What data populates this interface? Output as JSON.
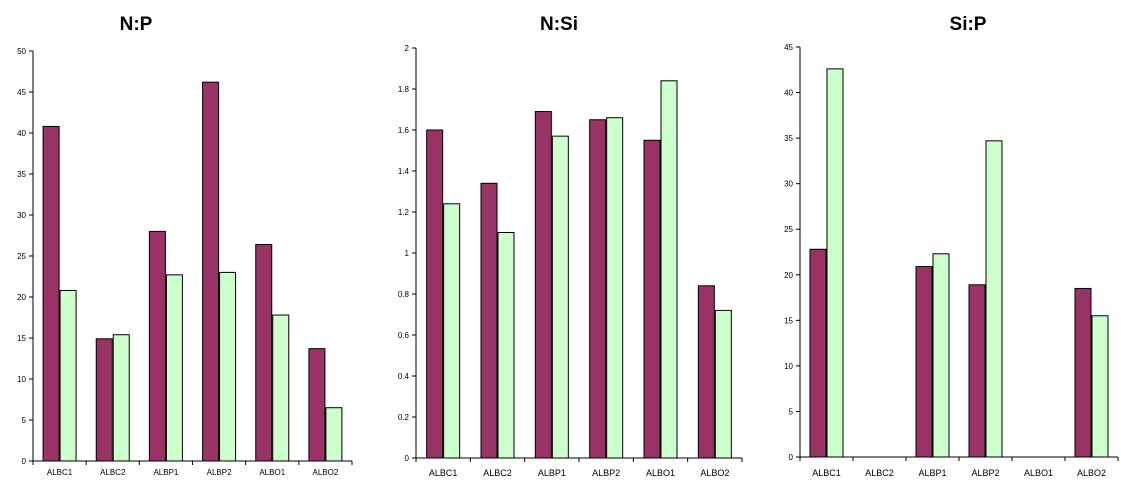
{
  "colors": {
    "series_a": "#993366",
    "series_b": "#CCFFCC",
    "axis": "#000000"
  },
  "chart_data": [
    {
      "type": "bar",
      "title": "N:P",
      "categories": [
        "ALBC1",
        "ALBC2",
        "ALBP1",
        "ALBP2",
        "ALBO1",
        "ALBO2"
      ],
      "series": [
        {
          "values": [
            40.8,
            14.9,
            28.0,
            46.2,
            26.4,
            13.7
          ]
        },
        {
          "values": [
            20.8,
            15.4,
            22.7,
            23.0,
            17.8,
            6.5
          ]
        }
      ],
      "ylim": [
        0,
        50
      ],
      "yticks": [
        0,
        5,
        10,
        15,
        20,
        25,
        30,
        35,
        40,
        45,
        50
      ],
      "ytick_labels": [
        "0",
        "5",
        "10",
        "15",
        "20",
        "25",
        "30",
        "35",
        "40",
        "45",
        "50"
      ],
      "grid": false,
      "legend": "none"
    },
    {
      "type": "bar",
      "title": "N:Si",
      "categories": [
        "ALBC1",
        "ALBC2",
        "ALBP1",
        "ALBP2",
        "ALBO1",
        "ALBO2"
      ],
      "series": [
        {
          "values": [
            1.6,
            1.34,
            1.69,
            1.65,
            1.55,
            0.84
          ]
        },
        {
          "values": [
            1.24,
            1.1,
            1.57,
            1.66,
            1.84,
            0.72
          ]
        }
      ],
      "ylim": [
        0,
        2
      ],
      "yticks": [
        0,
        0.2,
        0.4,
        0.6,
        0.8,
        1,
        1.2,
        1.4,
        1.6,
        1.8,
        2
      ],
      "ytick_labels": [
        "0",
        "0.2",
        "0.4",
        "0.6",
        "0.8",
        "1",
        "1.2",
        "1.4",
        "1.6",
        "1.8",
        "2"
      ],
      "grid": false,
      "legend": "none"
    },
    {
      "type": "bar",
      "title": "Si:P",
      "categories": [
        "ALBC1",
        "ALBC2",
        "ALBP1",
        "ALBP2",
        "ALBO1",
        "ALBO2"
      ],
      "series": [
        {
          "values": [
            22.8,
            null,
            20.9,
            18.9,
            null,
            18.5
          ]
        },
        {
          "values": [
            42.6,
            null,
            22.3,
            34.7,
            null,
            15.5
          ]
        }
      ],
      "ylim": [
        0,
        45
      ],
      "yticks": [
        0,
        5,
        10,
        15,
        20,
        25,
        30,
        35,
        40,
        45
      ],
      "ytick_labels": [
        "0",
        "5",
        "10",
        "15",
        "20",
        "25",
        "30",
        "35",
        "40",
        "45"
      ],
      "grid": false,
      "legend": "none"
    }
  ]
}
